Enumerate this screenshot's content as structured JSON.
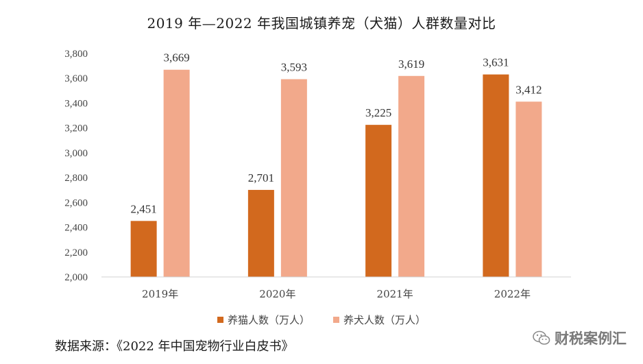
{
  "chart_data": {
    "type": "bar",
    "title": "2019 年—2022 年我国城镇养宠（犬猫）人群数量对比",
    "categories": [
      "2019年",
      "2020年",
      "2021年",
      "2022年"
    ],
    "series": [
      {
        "name": "养猫人数（万人）",
        "color": "#D2691E",
        "values": [
          2451,
          2701,
          3225,
          3631
        ]
      },
      {
        "name": "养犬人数（万人）",
        "color": "#F2A98B",
        "values": [
          3669,
          3593,
          3619,
          3412
        ]
      }
    ],
    "ylim": [
      2000,
      3800
    ],
    "yticks": [
      2000,
      2200,
      2400,
      2600,
      2800,
      3000,
      3200,
      3400,
      3600,
      3800
    ],
    "ytick_labels": [
      "2,000",
      "2,200",
      "2,400",
      "2,600",
      "2,800",
      "3,000",
      "3,200",
      "3,400",
      "3,600",
      "3,800"
    ],
    "data_labels": [
      [
        "2,451",
        "2,701",
        "3,225",
        "3,631"
      ],
      [
        "3,669",
        "3,593",
        "3,619",
        "3,412"
      ]
    ],
    "xlabel": "",
    "ylabel": "",
    "grid": false,
    "legend": "bottom"
  },
  "source": "数据来源：《2022 年中国宠物行业白皮书》",
  "watermark": {
    "text": "财税案例汇",
    "icon": "wechat-icon"
  }
}
